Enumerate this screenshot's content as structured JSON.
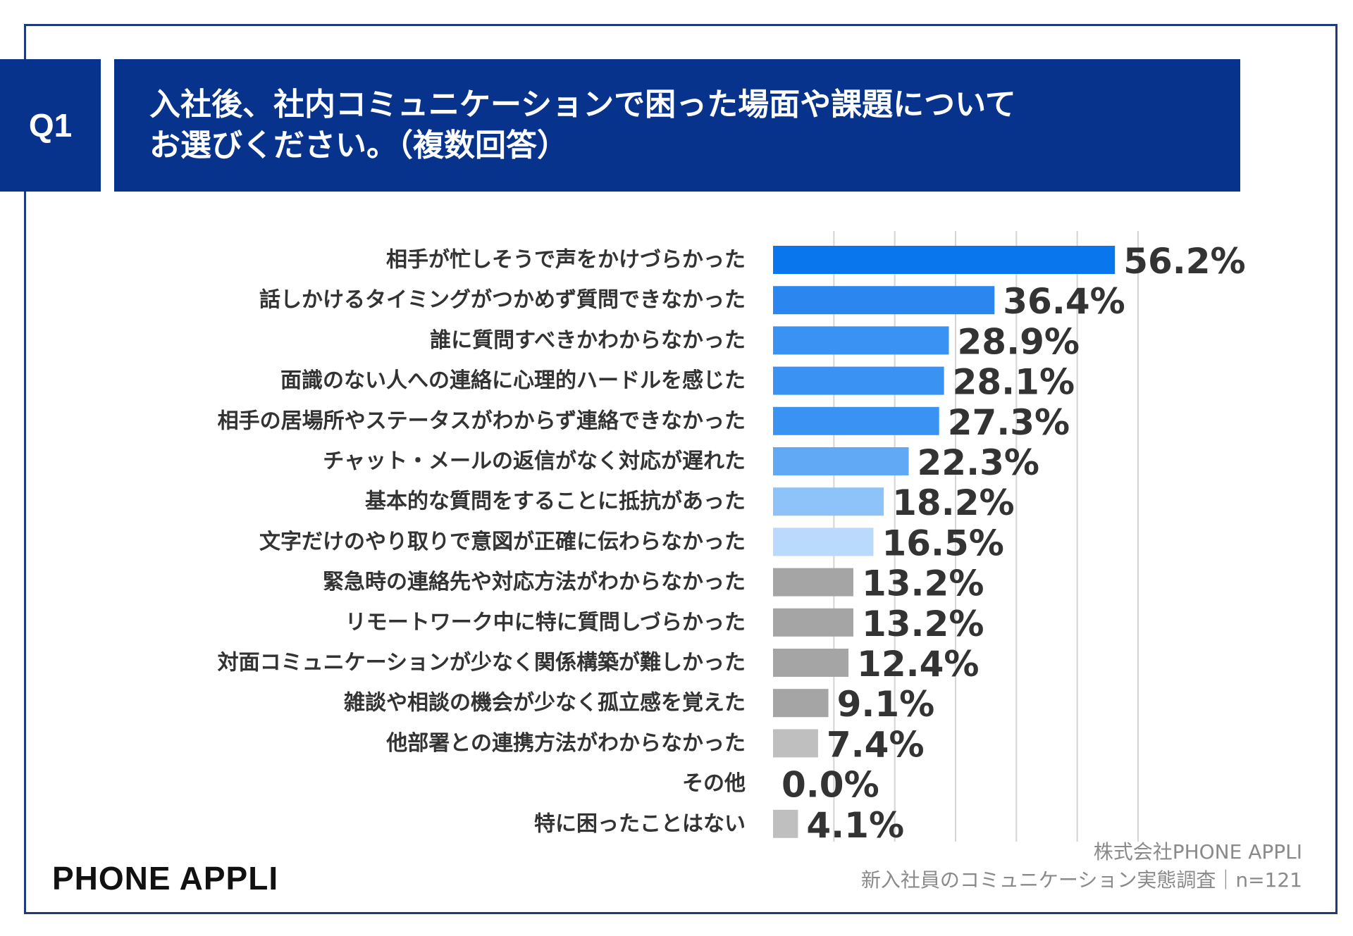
{
  "header": {
    "question_badge": "Q1",
    "question_line1": "入社後、社内コミュニケーションで困った場面や課題について",
    "question_line2": "お選びください。（複数回答）"
  },
  "colors": {
    "banner": "#07338c",
    "frame": "#1f3c78"
  },
  "chart_data": {
    "type": "bar",
    "orientation": "horizontal",
    "title": "入社後、社内コミュニケーションで困った場面や課題についてお選びください。（複数回答）",
    "unit": "%",
    "xlim": [
      0,
      60
    ],
    "grid": true,
    "categories": [
      "相手が忙しそうで声をかけづらかった",
      "話しかけるタイミングがつかめず質問できなかった",
      "誰に質問すべきかわからなかった",
      "面識のない人への連絡に心理的ハードルを感じた",
      "相手の居場所やステータスがわからず連絡できなかった",
      "チャット・メールの返信がなく対応が遅れた",
      "基本的な質問をすることに抵抗があった",
      "文字だけのやり取りで意図が正確に伝わらなかった",
      "緊急時の連絡先や対応方法がわからなかった",
      "リモートワーク中に特に質問しづらかった",
      "対面コミュニケーションが少なく関係構築が難しかった",
      "雑談や相談の機会が少なく孤立感を覚えた",
      "他部署との連携方法がわからなかった",
      "その他",
      "特に困ったことはない"
    ],
    "values": [
      56.2,
      36.4,
      28.9,
      28.1,
      27.3,
      22.3,
      18.2,
      16.5,
      13.2,
      13.2,
      12.4,
      9.1,
      7.4,
      0.0,
      4.1
    ],
    "value_labels": [
      "56.2%",
      "36.4%",
      "28.9%",
      "28.1%",
      "27.3%",
      "22.3%",
      "18.2%",
      "16.5%",
      "13.2%",
      "13.2%",
      "12.4%",
      "9.1%",
      "7.4%",
      "0.0%",
      "4.1%"
    ],
    "bar_colors": [
      "#0a76ee",
      "#2b87ef",
      "#3a92f2",
      "#3a92f2",
      "#3a92f2",
      "#62a9f5",
      "#8ec3f9",
      "#b9dafc",
      "#a5a5a5",
      "#a5a5a5",
      "#a5a5a5",
      "#a5a5a5",
      "#bfbfbf",
      "#bfbfbf",
      "#bfbfbf"
    ]
  },
  "footer": {
    "brand": "PHONE  APPLI",
    "source_line1": "株式会社PHONE APPLI",
    "source_line2": "新入社員のコミュニケーション実態調査｜n=121"
  }
}
